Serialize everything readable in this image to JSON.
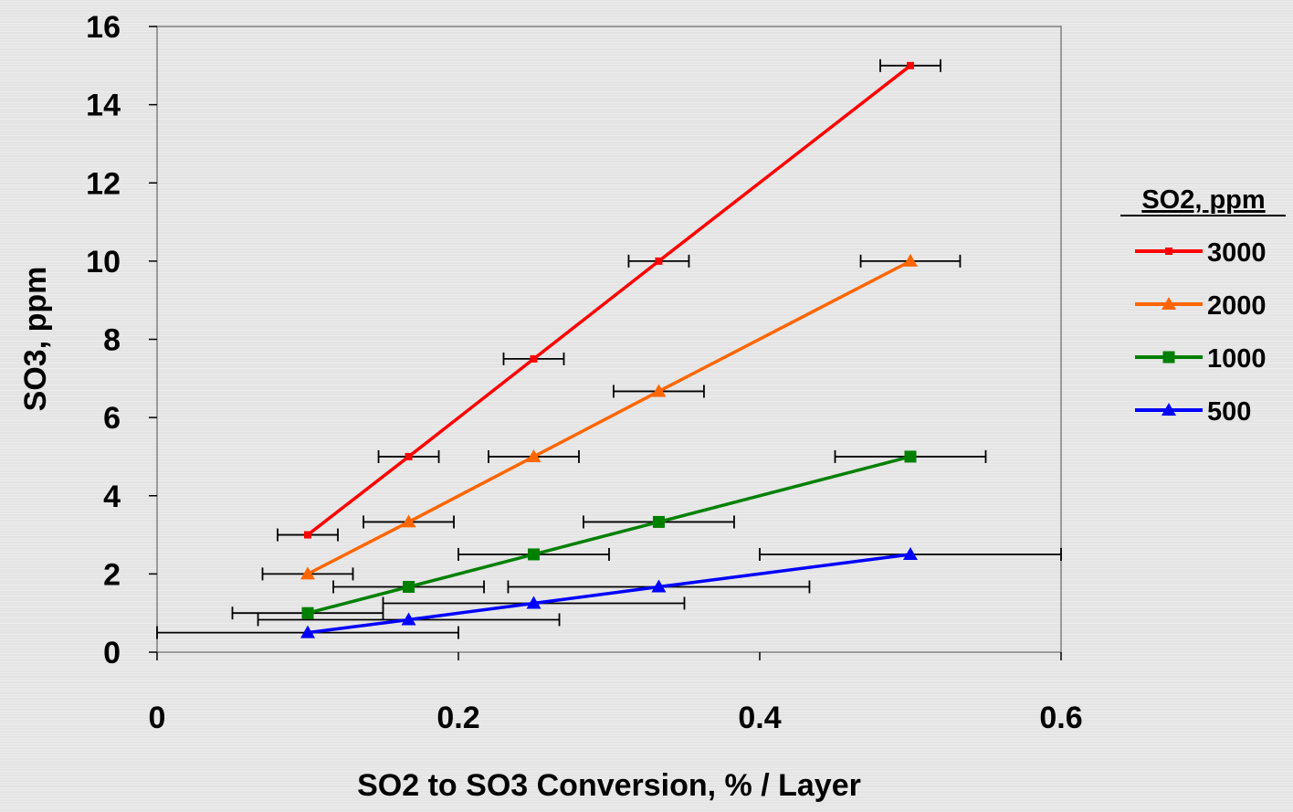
{
  "chart_data": {
    "type": "line",
    "title": "",
    "xlabel": "SO2 to SO3 Conversion, % / Layer",
    "ylabel": "SO3, ppm",
    "xlim": [
      0,
      0.6
    ],
    "ylim": [
      0,
      16
    ],
    "x_ticks": [
      0,
      0.2,
      0.4,
      0.6
    ],
    "x_tick_labels": [
      "0",
      "0.2",
      "0.4",
      "0.6"
    ],
    "y_ticks": [
      0,
      2,
      4,
      6,
      8,
      10,
      12,
      14,
      16
    ],
    "y_tick_labels": [
      "0",
      "2",
      "4",
      "6",
      "8",
      "10",
      "12",
      "14",
      "16"
    ],
    "grid": false,
    "legend_title": "SO2, ppm",
    "legend_position": "right",
    "error_bars": "horizontal",
    "series": [
      {
        "name": "3000",
        "color": "#ff0000",
        "marker": "small-square",
        "points": [
          {
            "x": 0.1,
            "y": 3.0,
            "xerr": 0.02
          },
          {
            "x": 0.167,
            "y": 5.0,
            "xerr": 0.02
          },
          {
            "x": 0.25,
            "y": 7.5,
            "xerr": 0.02
          },
          {
            "x": 0.333,
            "y": 10.0,
            "xerr": 0.02
          },
          {
            "x": 0.5,
            "y": 15.0,
            "xerr": 0.02
          }
        ]
      },
      {
        "name": "2000",
        "color": "#ff6600",
        "marker": "triangle",
        "points": [
          {
            "x": 0.1,
            "y": 2.0,
            "xerr": 0.03
          },
          {
            "x": 0.167,
            "y": 3.33,
            "xerr": 0.03
          },
          {
            "x": 0.25,
            "y": 5.0,
            "xerr": 0.03
          },
          {
            "x": 0.333,
            "y": 6.67,
            "xerr": 0.03
          },
          {
            "x": 0.5,
            "y": 10.0,
            "xerr": 0.033
          }
        ]
      },
      {
        "name": "1000",
        "color": "#008000",
        "marker": "square",
        "points": [
          {
            "x": 0.1,
            "y": 1.0,
            "xerr": 0.05
          },
          {
            "x": 0.167,
            "y": 1.67,
            "xerr": 0.05
          },
          {
            "x": 0.25,
            "y": 2.5,
            "xerr": 0.05
          },
          {
            "x": 0.333,
            "y": 3.33,
            "xerr": 0.05
          },
          {
            "x": 0.5,
            "y": 5.0,
            "xerr": 0.05
          }
        ]
      },
      {
        "name": "500",
        "color": "#0000ff",
        "marker": "triangle",
        "points": [
          {
            "x": 0.1,
            "y": 0.5,
            "xerr": 0.1
          },
          {
            "x": 0.167,
            "y": 0.83,
            "xerr": 0.1
          },
          {
            "x": 0.25,
            "y": 1.25,
            "xerr": 0.1
          },
          {
            "x": 0.333,
            "y": 1.67,
            "xerr": 0.1
          },
          {
            "x": 0.5,
            "y": 2.5,
            "xerr": 0.1
          }
        ]
      }
    ]
  }
}
